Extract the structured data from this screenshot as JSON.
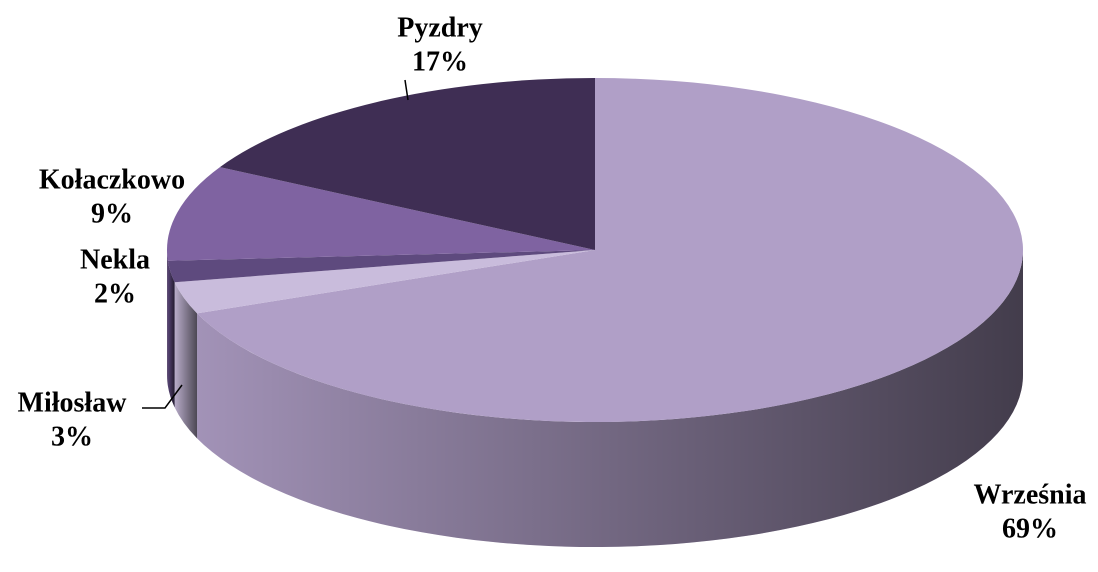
{
  "chart_data": {
    "type": "pie",
    "categories": [
      "Września",
      "Miłosław",
      "Nekla",
      "Kołaczkowo",
      "Pyzdry"
    ],
    "values": [
      69,
      3,
      2,
      9,
      17
    ],
    "value_labels": [
      "69%",
      "3%",
      "2%",
      "9%",
      "17%"
    ],
    "colors": [
      "#b09fc7",
      "#c9bcdc",
      "#5e4a7e",
      "#7f63a1",
      "#3f2e54"
    ]
  }
}
